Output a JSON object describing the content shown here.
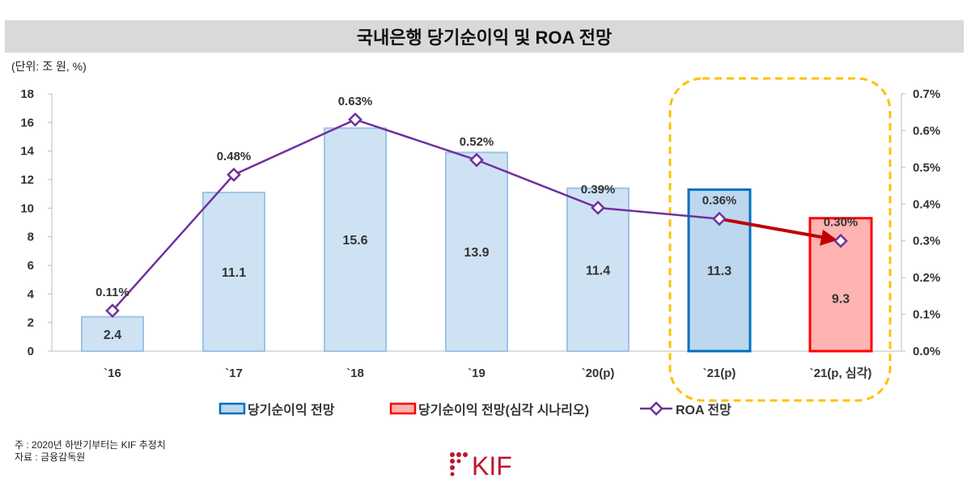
{
  "title": "국내은행 당기순이익 및 ROA 전망",
  "unit_label": "(단위: 조 원, %)",
  "notes": [
    "주 : 2020년 하반기부터는 KIF 추정치",
    "자료 : 금융감독원"
  ],
  "logo_text": "KIF",
  "colors": {
    "bar_fill": "#cfe2f3",
    "bar_stroke": "#9dc3e6",
    "bar_highlight_fill": "#bdd7ee",
    "bar_highlight_stroke": "#0070c0",
    "bar_severe_fill": "#ffb3b3",
    "bar_severe_stroke": "#ff0000",
    "line": "#7030a0",
    "arrow": "#c00000",
    "highlight_box": "#ffc000",
    "logo": "#c0152f"
  },
  "chart_data": {
    "type": "bar+line",
    "title": "국내은행 당기순이익 및 ROA 전망",
    "categories": [
      "`16",
      "`17",
      "`18",
      "`19",
      "`20(p)",
      "`21(p)",
      "`21(p, 심각)"
    ],
    "series": [
      {
        "name": "당기순이익 전망",
        "type": "bar",
        "axis": "left",
        "values": [
          2.4,
          11.1,
          15.6,
          13.9,
          11.4,
          11.3,
          null
        ],
        "value_labels": [
          "2.4",
          "11.1",
          "15.6",
          "13.9",
          "11.4",
          "11.3",
          ""
        ]
      },
      {
        "name": "당기순이익 전망(심각 시나리오)",
        "type": "bar",
        "axis": "left",
        "values": [
          null,
          null,
          null,
          null,
          null,
          null,
          9.3
        ],
        "value_labels": [
          "",
          "",
          "",
          "",
          "",
          "",
          "9.3"
        ]
      },
      {
        "name": "ROA 전망",
        "type": "line",
        "axis": "right",
        "values": [
          0.11,
          0.48,
          0.63,
          0.52,
          0.39,
          0.36,
          0.3
        ],
        "value_labels": [
          "0.11%",
          "0.48%",
          "0.63%",
          "0.52%",
          "0.39%",
          "0.36%",
          "0.30%"
        ]
      }
    ],
    "y_left": {
      "range": [
        0,
        18
      ],
      "ticks": [
        "0",
        "2",
        "4",
        "6",
        "8",
        "10",
        "12",
        "14",
        "16",
        "18"
      ]
    },
    "y_right": {
      "range": [
        0,
        0.7
      ],
      "ticks": [
        "0.0%",
        "0.1%",
        "0.2%",
        "0.3%",
        "0.4%",
        "0.5%",
        "0.6%",
        "0.7%"
      ]
    },
    "legend_position": "bottom",
    "grid": false,
    "annotations": [
      "highlight box around `21(p) and `21(p, 심각)",
      "arrow from `21(p) ROA to `21(p, 심각) ROA"
    ]
  }
}
